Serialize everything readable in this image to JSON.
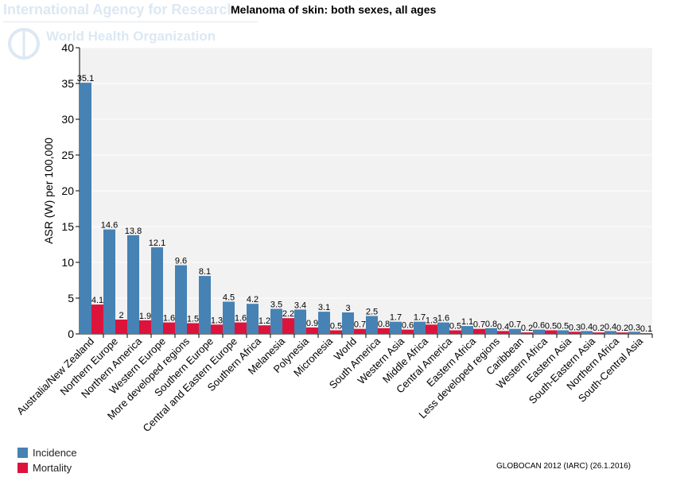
{
  "watermark": {
    "line1": "International Agency for Research on Cancer",
    "line2": "World Health Organization"
  },
  "credit": "GLOBOCAN 2012 (IARC) (26.1.2016)",
  "chart_data": {
    "type": "bar",
    "title": "Melanoma of skin: both sexes, all ages",
    "ylabel": "ASR (W) per 100,000",
    "xlabel": "",
    "ylim": [
      0,
      40
    ],
    "yticks": [
      0,
      5,
      10,
      15,
      20,
      25,
      30,
      35,
      40
    ],
    "grid": true,
    "legend_placement": "bottom-left",
    "categories": [
      "Australia/New Zealand",
      "Northern Europe",
      "Northern America",
      "Western Europe",
      "More developed regions",
      "Southern Europe",
      "Central and Eastern Europe",
      "Southern Africa",
      "Melanesia",
      "Polynesia",
      "Micronesia",
      "World",
      "South America",
      "Western Asia",
      "Middle Africa",
      "Central America",
      "Eastern Africa",
      "Less developed regions",
      "Caribbean",
      "Western Africa",
      "Eastern Asia",
      "South-Eastern Asia",
      "Northern Africa",
      "South-Central Asia"
    ],
    "series": [
      {
        "name": "Incidence",
        "color": "#4682b4",
        "values": [
          35.1,
          14.6,
          13.8,
          12.1,
          9.6,
          8.1,
          4.5,
          4.2,
          3.5,
          3.4,
          3.1,
          3,
          2.5,
          1.7,
          1.7,
          1.6,
          1.1,
          0.8,
          0.7,
          0.6,
          0.5,
          0.4,
          0.4,
          0.3
        ]
      },
      {
        "name": "Mortality",
        "color": "#dc143c",
        "values": [
          4.1,
          2,
          1.9,
          1.6,
          1.5,
          1.3,
          1.6,
          1.2,
          2.2,
          0.9,
          0.5,
          0.7,
          0.8,
          0.6,
          1.3,
          0.5,
          0.7,
          0.4,
          0.2,
          0.5,
          0.3,
          0.2,
          0.2,
          0.1
        ]
      }
    ]
  }
}
